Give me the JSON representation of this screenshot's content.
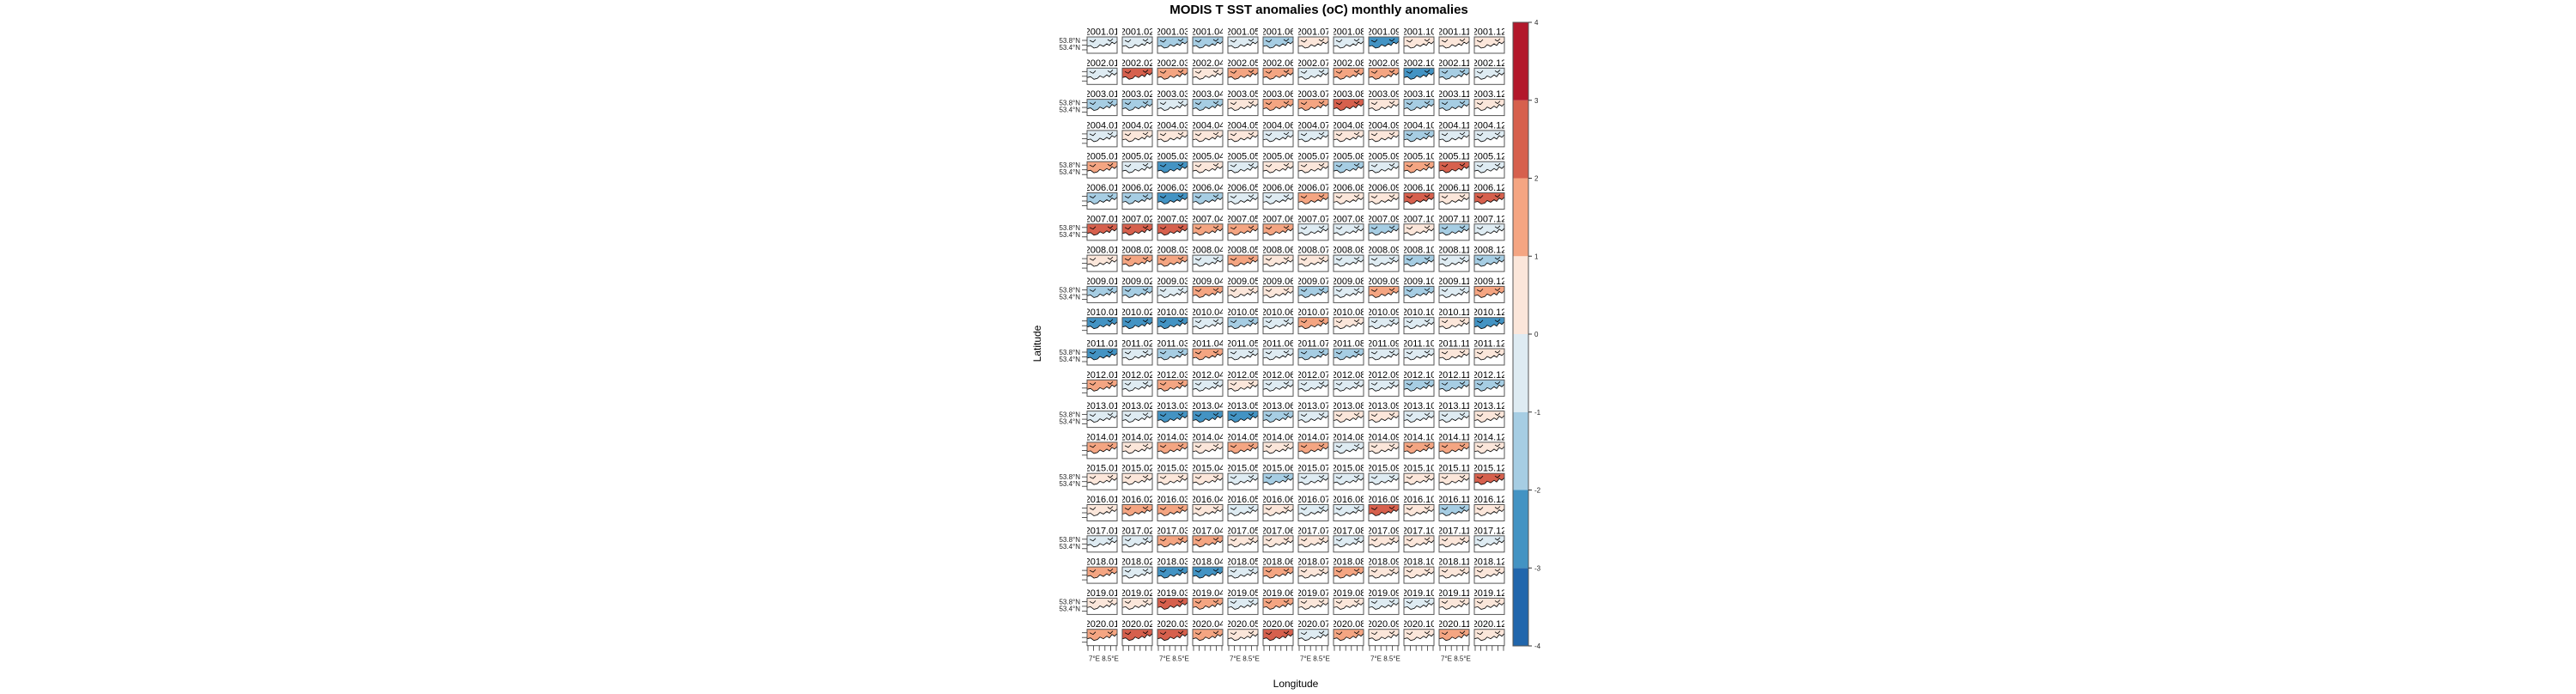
{
  "chart_data": {
    "type": "heatmap",
    "title": "MODIS T SST anomalies (oC) monthly anomalies",
    "xlabel": "Longitude",
    "ylabel": "Latitude",
    "x_tick_labels": [
      "7°E",
      "8.5°E"
    ],
    "y_tick_labels": [
      "53.8°N",
      "53.4°N"
    ],
    "years": [
      "2001",
      "2002",
      "2003",
      "2004",
      "2005",
      "2006",
      "2007",
      "2008",
      "2009",
      "2010",
      "2011",
      "2012",
      "2013",
      "2014",
      "2015",
      "2016",
      "2017",
      "2018",
      "2019",
      "2020"
    ],
    "months": [
      "01",
      "02",
      "03",
      "04",
      "05",
      "06",
      "07",
      "08",
      "09",
      "10",
      "11",
      "12"
    ],
    "panel_dominant_anomaly": [
      [
        -0.5,
        -0.5,
        -1.5,
        -1.5,
        -0.5,
        -1.5,
        0.5,
        -0.5,
        -2.5,
        0.5,
        0.5,
        0.5
      ],
      [
        -0.5,
        2.5,
        1.5,
        0.5,
        1.5,
        1.5,
        -0.5,
        1.5,
        1.5,
        -2.5,
        -1.5,
        -0.5
      ],
      [
        -1.5,
        -1.5,
        -0.5,
        -1.5,
        0.5,
        1.5,
        1.5,
        2.5,
        0.5,
        -1.5,
        -1.5,
        0.5
      ],
      [
        -0.5,
        0.5,
        0.5,
        0.5,
        0.5,
        -0.5,
        -0.5,
        0.5,
        0.5,
        -1.5,
        -0.5,
        -0.5
      ],
      [
        1.5,
        -0.5,
        -2.5,
        0.5,
        -0.5,
        0.5,
        0.5,
        -1.5,
        -0.5,
        1.5,
        2.5,
        -0.5
      ],
      [
        -1.5,
        -1.5,
        -2.5,
        -1.5,
        -0.5,
        -0.5,
        1.5,
        0.5,
        0.5,
        2.5,
        0.5,
        2.5
      ],
      [
        2.5,
        2.5,
        2.5,
        1.5,
        1.5,
        1.5,
        -0.5,
        -0.5,
        -1.5,
        0.5,
        -1.5,
        -0.5
      ],
      [
        0.5,
        1.5,
        1.5,
        -0.5,
        1.5,
        0.5,
        0.5,
        -0.5,
        -0.5,
        -1.5,
        -0.5,
        -1.5
      ],
      [
        -1.5,
        -1.5,
        -0.5,
        1.5,
        0.5,
        0.5,
        -1.5,
        -0.5,
        1.5,
        -1.5,
        -0.5,
        1.5
      ],
      [
        -2.5,
        -2.5,
        -2.5,
        -0.5,
        -1.5,
        -0.5,
        1.5,
        0.5,
        -0.5,
        -0.5,
        0.5,
        -2.5
      ],
      [
        -2.5,
        -0.5,
        -1.5,
        1.5,
        -0.5,
        -0.5,
        -1.5,
        -1.5,
        -0.5,
        -0.5,
        0.5,
        0.5
      ],
      [
        1.5,
        -0.5,
        1.5,
        -0.5,
        0.5,
        -0.5,
        -0.5,
        -0.5,
        -0.5,
        -1.5,
        -1.5,
        -1.5
      ],
      [
        -0.5,
        -0.5,
        -2.5,
        -2.5,
        -2.5,
        -1.5,
        -0.5,
        0.5,
        0.5,
        -0.5,
        -0.5,
        0.5
      ],
      [
        1.5,
        0.5,
        1.5,
        0.5,
        1.5,
        0.5,
        1.5,
        -0.5,
        0.5,
        1.5,
        1.5,
        0.5
      ],
      [
        0.5,
        0.5,
        0.5,
        0.5,
        -0.5,
        -1.5,
        -0.5,
        -0.5,
        -0.5,
        0.5,
        0.5,
        2.5
      ],
      [
        0.5,
        1.5,
        1.5,
        0.5,
        -0.5,
        0.5,
        -0.5,
        -0.5,
        2.5,
        0.5,
        -1.5,
        0.5
      ],
      [
        -0.5,
        -0.5,
        1.5,
        1.5,
        0.5,
        0.5,
        0.5,
        -0.5,
        0.5,
        0.5,
        0.5,
        -0.5
      ],
      [
        1.5,
        -0.5,
        -2.5,
        -2.5,
        -0.5,
        1.5,
        0.5,
        1.5,
        0.5,
        0.5,
        0.5,
        0.5
      ],
      [
        0.5,
        0.5,
        2.5,
        1.5,
        -0.5,
        1.5,
        0.5,
        0.5,
        -0.5,
        -0.5,
        0.5,
        0.5
      ],
      [
        1.5,
        2.5,
        2.5,
        1.5,
        0.5,
        2.5,
        -0.5,
        1.5,
        0.5,
        0.5,
        1.5,
        0.5
      ]
    ],
    "colorbar": {
      "range": [
        -4,
        4
      ],
      "ticks": [
        "-4",
        "-3",
        "-2",
        "-1",
        "0",
        "1",
        "2",
        "3",
        "4"
      ],
      "bins": [
        -4,
        -3,
        -2,
        -1,
        0,
        1,
        2,
        3,
        4
      ],
      "colors": [
        "#2166ac",
        "#4393c3",
        "#a6cde3",
        "#deebf2",
        "#fbe6da",
        "#f4a582",
        "#d6604d",
        "#b2182b"
      ]
    }
  }
}
